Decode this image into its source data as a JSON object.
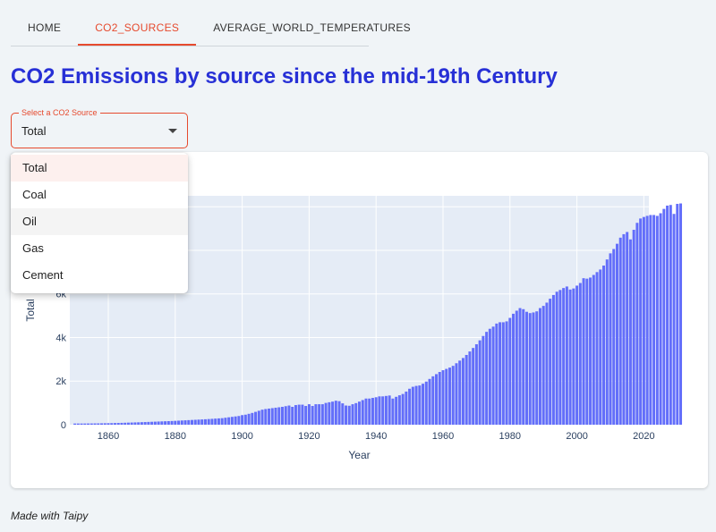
{
  "tabs": [
    {
      "label": "HOME"
    },
    {
      "label": "CO2_SOURCES"
    },
    {
      "label": "AVERAGE_WORLD_TEMPERATURES"
    }
  ],
  "active_tab": "CO2_SOURCES",
  "page_title": "CO2 Emissions by source since the mid-19th Century",
  "select": {
    "label": "Select a CO2 Source",
    "value": "Total",
    "options": [
      "Total",
      "Coal",
      "Oil",
      "Gas",
      "Cement"
    ]
  },
  "footer": "Made with Taipy",
  "colors": {
    "accent": "#e64a2e",
    "title": "#2730d6",
    "bar": "#636efa",
    "plot_bg": "#e5ecf6"
  },
  "chart_data": {
    "type": "bar",
    "xlabel": "Year",
    "ylabel": "Total",
    "xlim": [
      1848.5,
      2021.5
    ],
    "ylim": [
      0,
      10500
    ],
    "x_ticks": [
      1860,
      1880,
      1900,
      1920,
      1940,
      1960,
      1980,
      2000,
      2020
    ],
    "y_ticks": [
      0,
      2000,
      4000,
      6000
    ],
    "y_tick_labels": [
      "0",
      "2k",
      "4k",
      "6k"
    ],
    "grid": true,
    "series": [
      {
        "x_start": 1850,
        "values": [
          54,
          54,
          54,
          55,
          56,
          58,
          60,
          61,
          64,
          67,
          70,
          73,
          77,
          81,
          85,
          90,
          95,
          100,
          105,
          110,
          116,
          122,
          128,
          134,
          140,
          146,
          152,
          158,
          164,
          170,
          178,
          186,
          194,
          202,
          210,
          218,
          226,
          234,
          242,
          250,
          260,
          270,
          280,
          290,
          300,
          320,
          340,
          360,
          380,
          400,
          440,
          460,
          500,
          540,
          590,
          640,
          690,
          720,
          740,
          760,
          780,
          800,
          820,
          850,
          880,
          820,
          900,
          920,
          920,
          860,
          940,
          860,
          940,
          940,
          940,
          1000,
          1030,
          1060,
          1100,
          1080,
          980,
          880,
          870,
          940,
          990,
          1060,
          1130,
          1200,
          1200,
          1230,
          1260,
          1300,
          1300,
          1320,
          1340,
          1200,
          1280,
          1350,
          1410,
          1520,
          1650,
          1740,
          1780,
          1800,
          1880,
          1980,
          2100,
          2220,
          2320,
          2420,
          2500,
          2560,
          2620,
          2700,
          2820,
          2940,
          3060,
          3200,
          3360,
          3520,
          3690,
          3870,
          4070,
          4260,
          4400,
          4500,
          4640,
          4700,
          4700,
          4740,
          4900,
          5090,
          5230,
          5350,
          5300,
          5180,
          5120,
          5150,
          5200,
          5350,
          5450,
          5600,
          5780,
          5950,
          6100,
          6180,
          6270,
          6340,
          6200,
          6250,
          6380,
          6500,
          6720,
          6700,
          6750,
          6870,
          7000,
          7120,
          7300,
          7580,
          7860,
          8060,
          8300,
          8580,
          8740,
          8840,
          8500,
          8940,
          9260,
          9460,
          9530,
          9580,
          9620,
          9620,
          9580,
          9700,
          9900,
          10050,
          10080,
          9670,
          10130,
          10150
        ]
      }
    ]
  }
}
